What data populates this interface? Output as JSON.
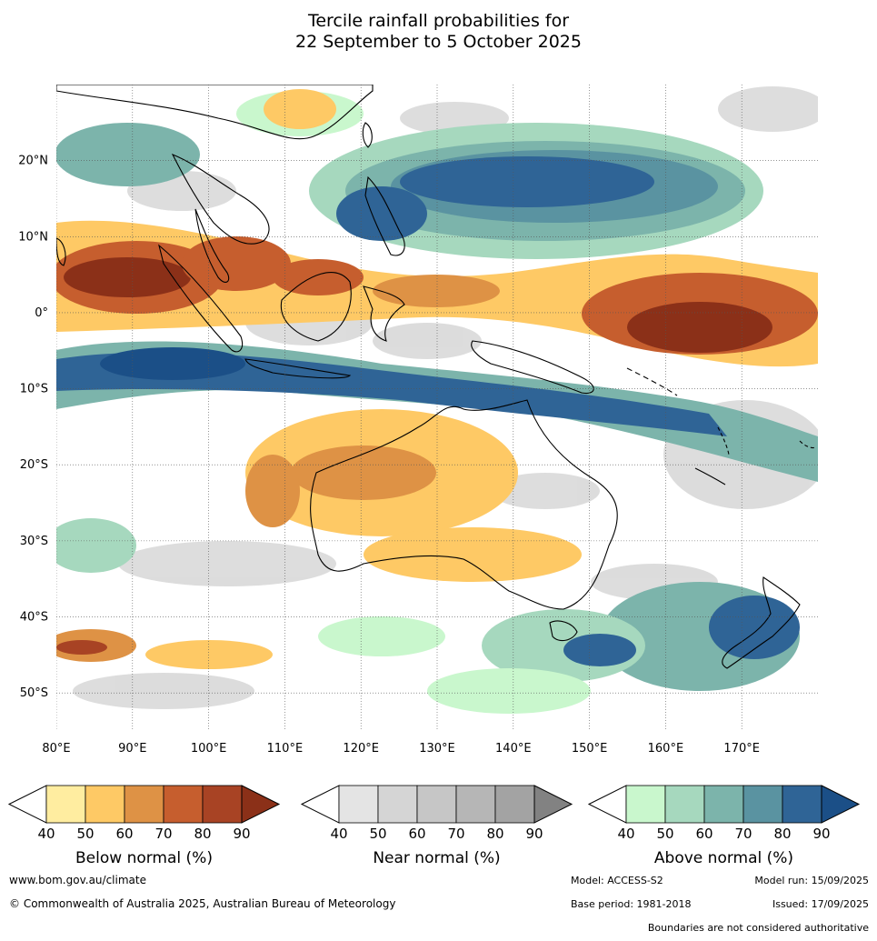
{
  "title": {
    "line1": "Tercile rainfall probabilities for",
    "line2": "22 September to 5 October 2025"
  },
  "map": {
    "lat_labels": [
      "20°N",
      "10°N",
      "0°",
      "10°S",
      "20°S",
      "30°S",
      "40°S",
      "50°S"
    ],
    "lon_labels": [
      "80°E",
      "90°E",
      "100°E",
      "110°E",
      "120°E",
      "130°E",
      "140°E",
      "150°E",
      "160°E",
      "170°E"
    ],
    "lon_range": [
      80,
      180
    ],
    "lat_range": [
      -55,
      30
    ]
  },
  "legends": [
    {
      "name": "Below normal (%)",
      "ticks": [
        "40",
        "50",
        "60",
        "70",
        "80",
        "90"
      ],
      "colors": [
        "#ffffff",
        "#ffeda0",
        "#fec965",
        "#de9245",
        "#c65e2e",
        "#a84324",
        "#8b3018"
      ]
    },
    {
      "name": "Near normal (%)",
      "ticks": [
        "40",
        "50",
        "60",
        "70",
        "80",
        "90"
      ],
      "colors": [
        "#ffffff",
        "#e4e4e4",
        "#d5d5d5",
        "#c6c6c6",
        "#b6b6b6",
        "#a3a3a3",
        "#828282"
      ]
    },
    {
      "name": "Above normal (%)",
      "ticks": [
        "40",
        "50",
        "60",
        "70",
        "80",
        "90"
      ],
      "colors": [
        "#ffffff",
        "#c9f7cd",
        "#a6d8be",
        "#7cb4ab",
        "#5a93a1",
        "#2f6496",
        "#1b4f87"
      ]
    }
  ],
  "footer": {
    "website": "www.bom.gov.au/climate",
    "copyright": "© Commonwealth of Australia 2025, Australian Bureau of Meteorology",
    "model": "Model: ACCESS-S2",
    "model_run": "Model run: 15/09/2025",
    "base_period": "Base period: 1981-2018",
    "issued": "Issued: 17/09/2025",
    "disclaimer": "Boundaries are not considered authoritative"
  }
}
